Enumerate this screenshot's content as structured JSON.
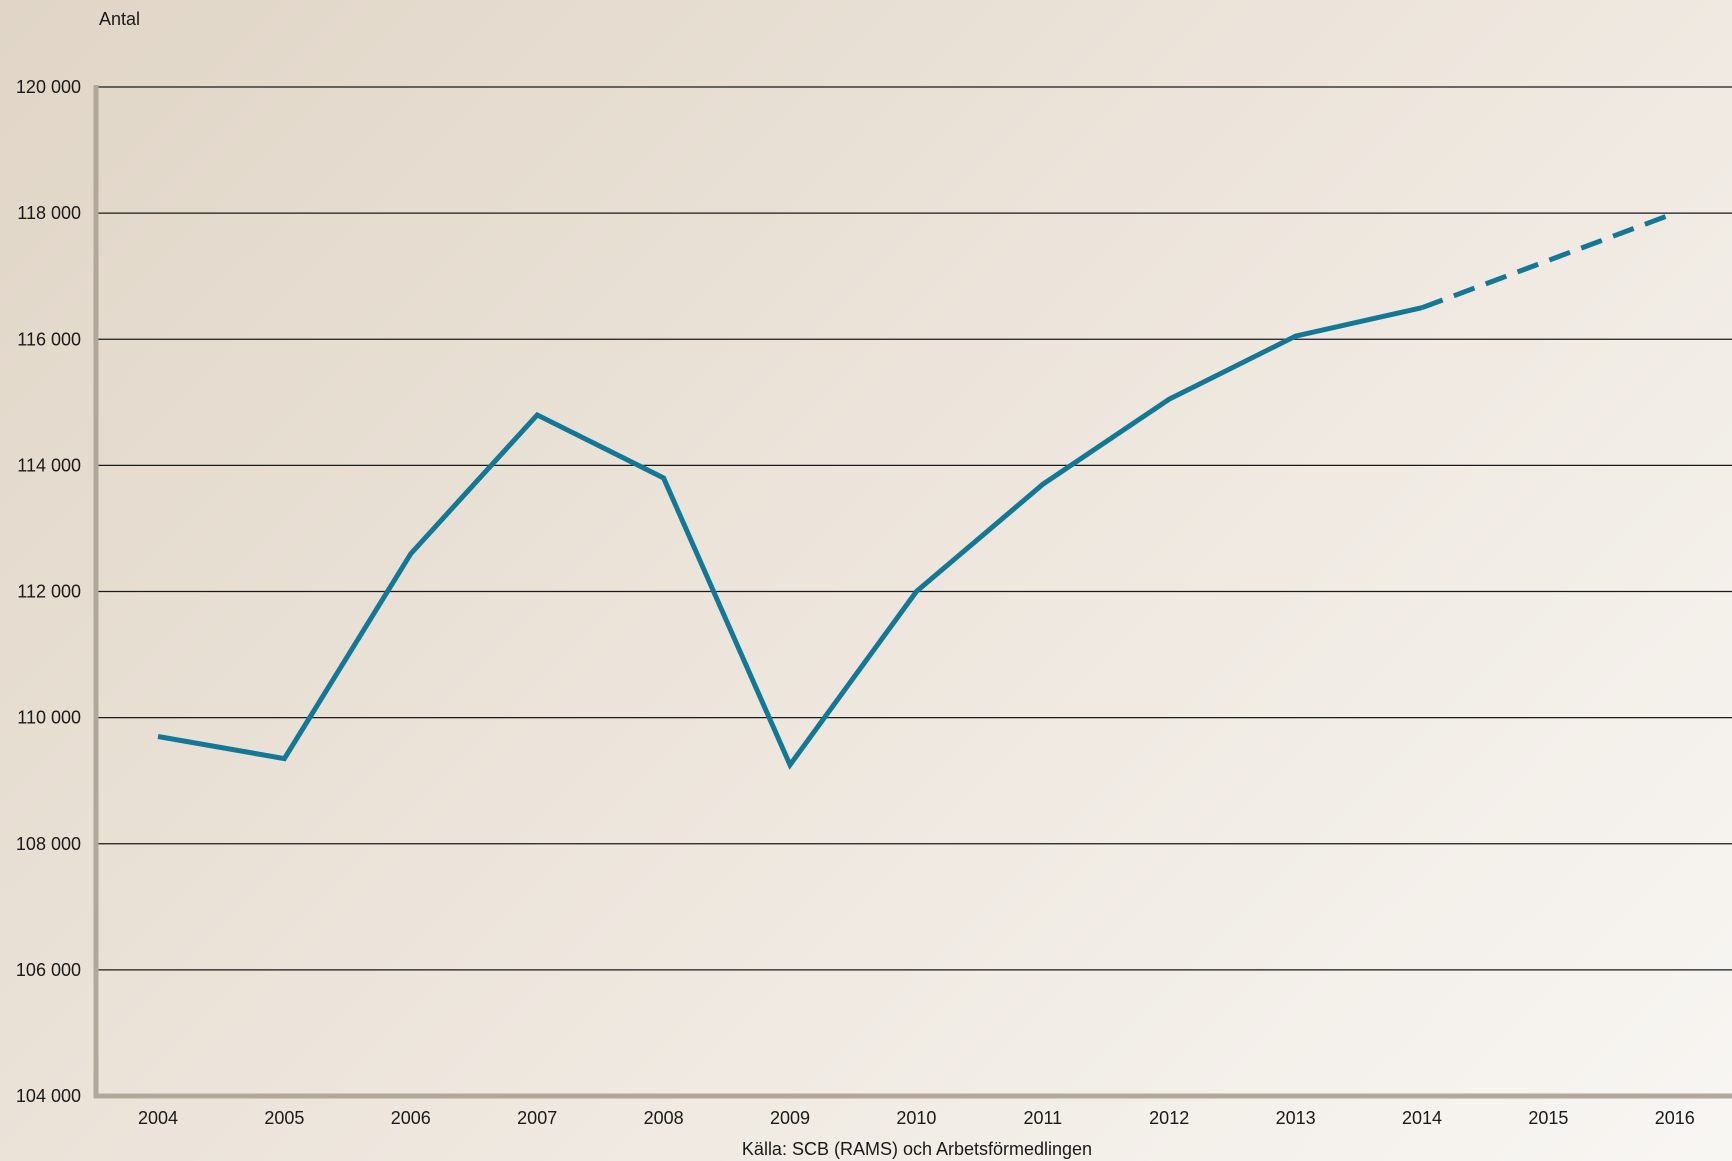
{
  "chart_data": {
    "type": "line",
    "ylabel": "Antal",
    "source": "Källa: SCB (RAMS) och Arbetsförmedlingen",
    "x": [
      "2004",
      "2005",
      "2006",
      "2007",
      "2008",
      "2009",
      "2010",
      "2011",
      "2012",
      "2013",
      "2014",
      "2015",
      "2016"
    ],
    "y_ticks": [
      104000,
      106000,
      108000,
      110000,
      112000,
      114000,
      116000,
      118000,
      120000
    ],
    "y_tick_labels": [
      "104 000",
      "106 000",
      "108 000",
      "110 000",
      "112 000",
      "114 000",
      "116 000",
      "118 000",
      "120 000"
    ],
    "ylim": [
      104000,
      120000
    ],
    "grid": true,
    "series": [
      {
        "color": "#137896",
        "style": "solid",
        "x": [
          "2004",
          "2005",
          "2006",
          "2007",
          "2008",
          "2009",
          "2010",
          "2011",
          "2012",
          "2013",
          "2014"
        ],
        "values": [
          109700,
          109350,
          112600,
          114800,
          113800,
          109250,
          112000,
          113700,
          115050,
          116050,
          116500
        ]
      },
      {
        "color": "#137896",
        "style": "dashed",
        "x": [
          "2014",
          "2015",
          "2016"
        ],
        "values": [
          116500,
          117250,
          118000
        ]
      }
    ]
  }
}
